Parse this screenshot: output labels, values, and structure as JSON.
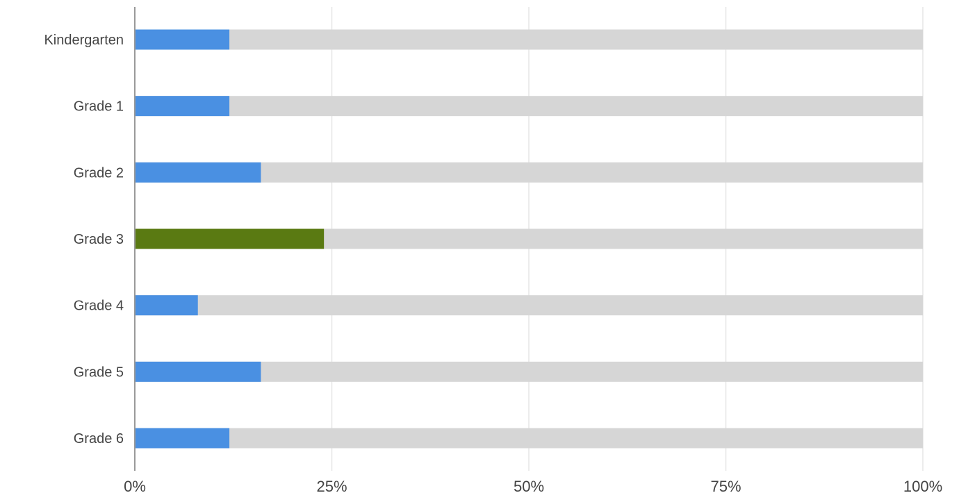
{
  "chart_data": {
    "type": "bar",
    "orientation": "horizontal",
    "stacked_100": true,
    "title": "",
    "xlabel": "",
    "ylabel": "",
    "categories": [
      "Kindergarten",
      "Grade 1",
      "Grade 2",
      "Grade 3",
      "Grade 4",
      "Grade 5",
      "Grade 6"
    ],
    "values": [
      12,
      12,
      16,
      24,
      8,
      16,
      12
    ],
    "xlim": [
      0,
      100
    ],
    "x_ticks": [
      "0%",
      "25%",
      "50%",
      "75%",
      "100%"
    ],
    "grid": true,
    "legend": "none",
    "colors": {
      "default_bar": "#4a90e2",
      "highlight_bar": "#5a7a12",
      "remainder": "#d6d6d6",
      "grid": "#e6e6e6",
      "axis": "#999999",
      "text": "#444444"
    },
    "highlight_category": "Grade 3"
  }
}
